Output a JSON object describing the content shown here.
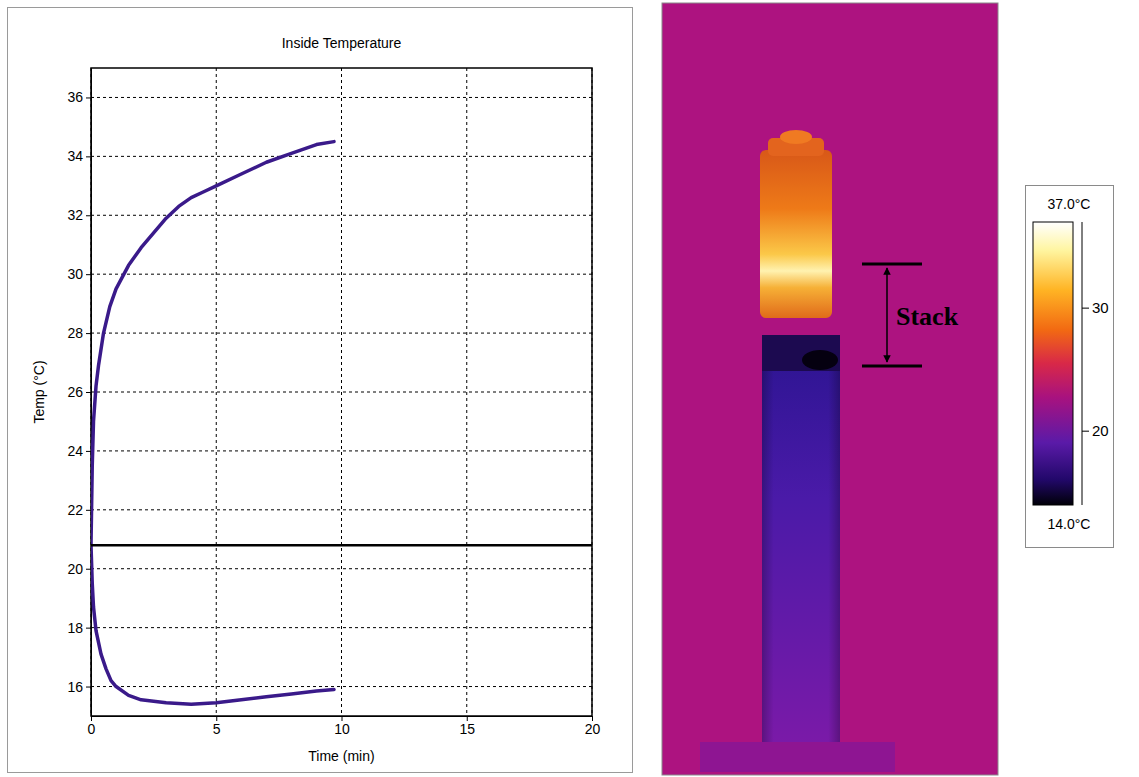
{
  "chart_data": {
    "type": "line",
    "title": "Inside Temperature",
    "x_label": "Time (min)",
    "y_label": "Temp (°C)",
    "xlim": [
      0,
      20
    ],
    "xticks": [
      0,
      5,
      10,
      15,
      20
    ],
    "ylim": [
      15,
      37
    ],
    "yticks": [
      16,
      18,
      20,
      22,
      24,
      26,
      28,
      30,
      32,
      34,
      36
    ],
    "grid": true,
    "series": [
      {
        "color": "#3a1a8a",
        "line_style": "solid",
        "x": [
          0,
          0.05,
          0.1,
          0.2,
          0.3,
          0.5,
          0.75,
          1,
          1.5,
          2,
          2.5,
          3,
          3.5,
          4,
          4.5,
          5,
          6,
          7,
          8,
          9,
          9.7
        ],
        "values": [
          20.8,
          23.5,
          25,
          26.2,
          26.9,
          28,
          28.9,
          29.5,
          30.3,
          30.9,
          31.4,
          31.9,
          32.3,
          32.6,
          32.8,
          33,
          33.4,
          33.8,
          34.1,
          34.4,
          34.5
        ]
      },
      {
        "color": "#3a1a8a",
        "line_style": "solid",
        "x": [
          0,
          0.05,
          0.1,
          0.2,
          0.4,
          0.6,
          0.8,
          1,
          1.5,
          2,
          3,
          4,
          5,
          6,
          7,
          8,
          9,
          9.7
        ],
        "values": [
          20.8,
          19.5,
          18.7,
          17.9,
          17.1,
          16.6,
          16.2,
          16,
          15.7,
          15.55,
          15.45,
          15.4,
          15.45,
          15.55,
          15.65,
          15.75,
          15.85,
          15.9
        ]
      },
      {
        "color": "#000000",
        "line_style": "solid",
        "x": [
          0,
          20
        ],
        "values": [
          20.8,
          20.8
        ]
      }
    ]
  },
  "thermal_image": {
    "annotation": "Stack",
    "colorbar": {
      "min": {
        "value": 14,
        "label": "14.0°C"
      },
      "max": {
        "value": 37,
        "label": "37.0°C"
      },
      "ticks": [
        20,
        30
      ]
    }
  }
}
